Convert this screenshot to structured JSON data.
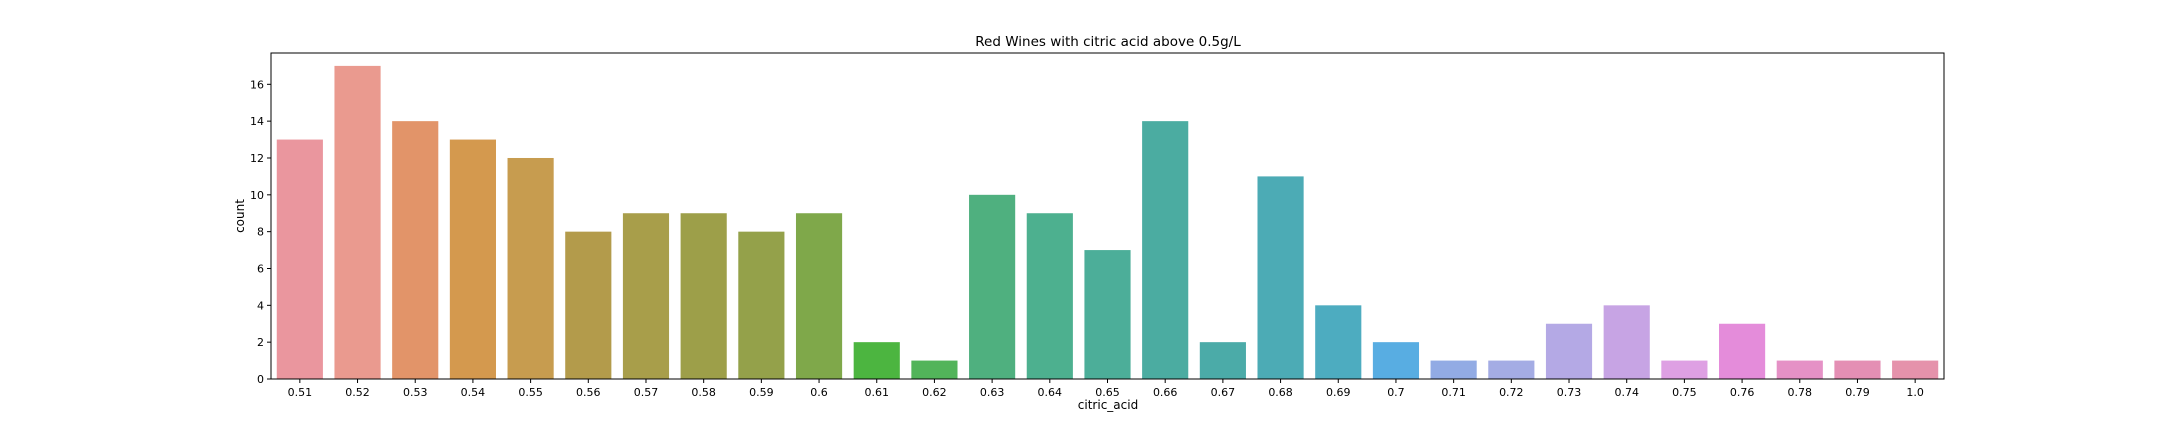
{
  "chart_data": {
    "type": "bar",
    "title": "Red Wines with citric acid above 0.5g/L",
    "xlabel": "citric_acid",
    "ylabel": "count",
    "ylim": [
      0,
      17.7
    ],
    "yticks": [
      0,
      2,
      4,
      6,
      8,
      10,
      12,
      14,
      16
    ],
    "grid": false,
    "categories": [
      "0.51",
      "0.52",
      "0.53",
      "0.54",
      "0.55",
      "0.56",
      "0.57",
      "0.58",
      "0.59",
      "0.6",
      "0.61",
      "0.62",
      "0.63",
      "0.64",
      "0.65",
      "0.66",
      "0.67",
      "0.68",
      "0.69",
      "0.7",
      "0.71",
      "0.72",
      "0.73",
      "0.74",
      "0.75",
      "0.76",
      "0.78",
      "0.79",
      "1.0"
    ],
    "values": [
      13,
      17,
      14,
      13,
      12,
      8,
      9,
      9,
      8,
      9,
      2,
      1,
      10,
      9,
      7,
      14,
      2,
      11,
      4,
      2,
      1,
      1,
      3,
      4,
      1,
      3,
      1,
      1,
      1
    ],
    "colors": [
      "#ea969e",
      "#ea9a8f",
      "#e29469",
      "#d4994e",
      "#c79c4f",
      "#b39b4b",
      "#a89e4a",
      "#9d9f49",
      "#94a14a",
      "#7fa84a",
      "#4cb540",
      "#52b45a",
      "#4fb07f",
      "#4db08f",
      "#4cae99",
      "#4baca1",
      "#4baba8",
      "#4cabb5",
      "#4dacc0",
      "#58ade2",
      "#92abe4",
      "#a4ace4",
      "#b4a9e5",
      "#c7a4e4",
      "#dea0e3",
      "#e48cda",
      "#e591c6",
      "#e48fb4",
      "#e592ab"
    ]
  }
}
